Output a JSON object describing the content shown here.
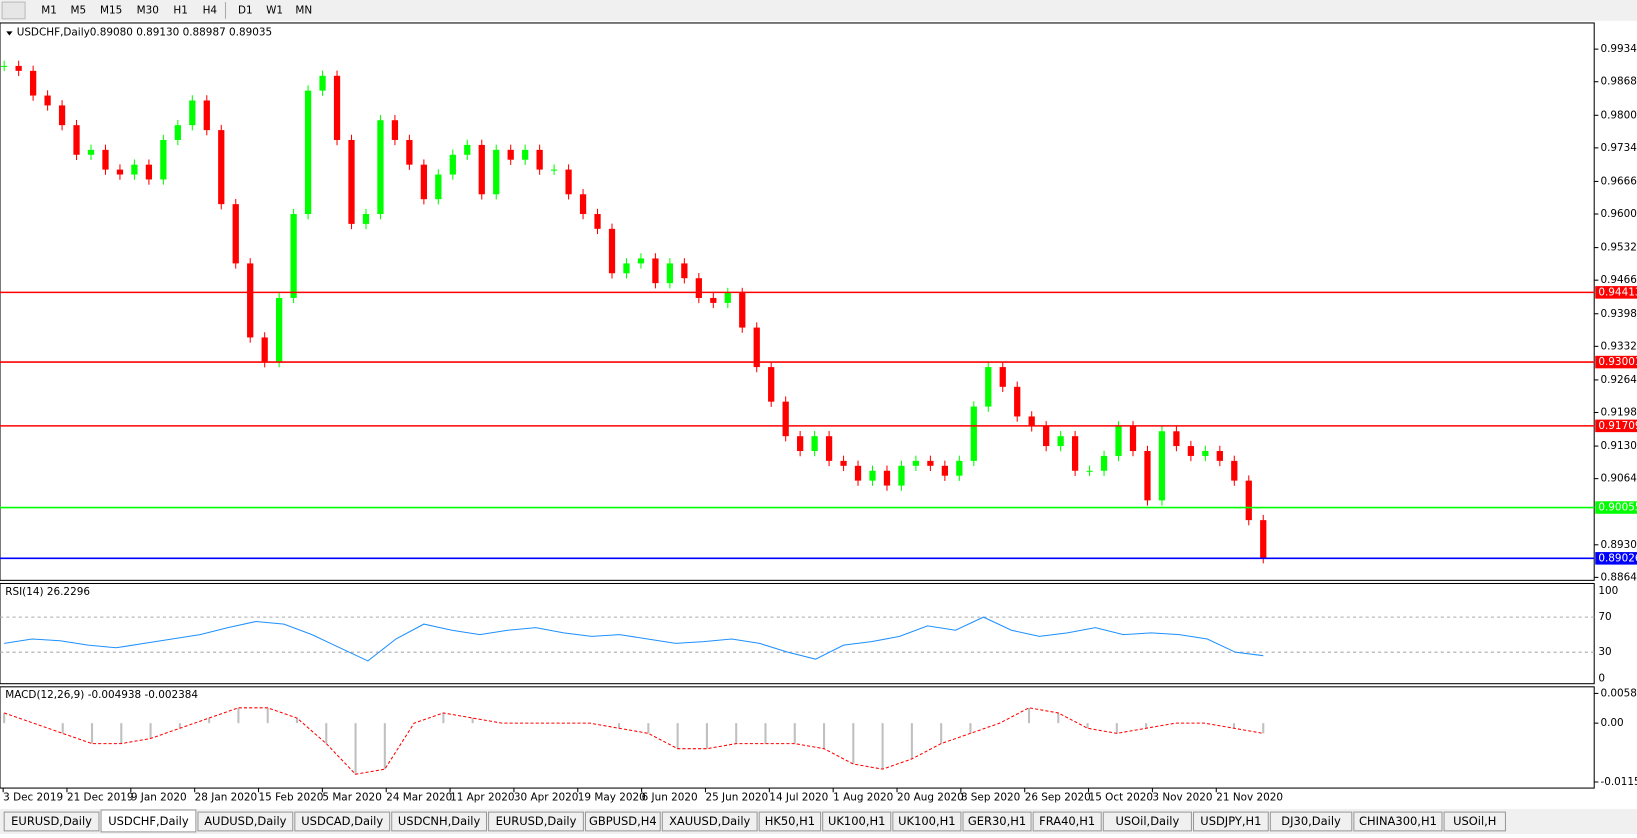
{
  "toolbar": {
    "buttons": [
      "M1",
      "M5",
      "M15",
      "M30",
      "H1",
      "H4",
      "D1",
      "W1",
      "MN"
    ]
  },
  "chart": {
    "symbol": "USDCHF,Daily",
    "ohlc": "0.89080 0.89130 0.88987 0.89035",
    "ylim": [
      0.8858,
      0.9987
    ],
    "yticks": [
      {
        "value": 0.9934,
        "label": "0.99340"
      },
      {
        "value": 0.9868,
        "label": "0.98680"
      },
      {
        "value": 0.98,
        "label": "0.98000"
      },
      {
        "value": 0.9734,
        "label": "0.97340"
      },
      {
        "value": 0.9666,
        "label": "0.96660"
      },
      {
        "value": 0.96,
        "label": "0.96000"
      },
      {
        "value": 0.9532,
        "label": "0.95320"
      },
      {
        "value": 0.9466,
        "label": "0.94660"
      },
      {
        "value": 0.9398,
        "label": "0.93980"
      },
      {
        "value": 0.9332,
        "label": "0.93320"
      },
      {
        "value": 0.9264,
        "label": "0.92640"
      },
      {
        "value": 0.9198,
        "label": "0.91980"
      },
      {
        "value": 0.913,
        "label": "0.91300"
      },
      {
        "value": 0.9064,
        "label": "0.90640"
      },
      {
        "value": 0.893,
        "label": "0.89300"
      },
      {
        "value": 0.8864,
        "label": "0.88640"
      }
    ],
    "levels": [
      {
        "value": 0.94413,
        "color": "#ff0000"
      },
      {
        "value": 0.93001,
        "color": "#ff0000"
      },
      {
        "value": 0.91709,
        "color": "#ff0000"
      },
      {
        "value": 0.90055,
        "color": "#00ff00"
      },
      {
        "value": 0.89026,
        "color": "#0000ff"
      }
    ],
    "closes": [
      0.99,
      0.989,
      0.984,
      0.982,
      0.978,
      0.972,
      0.973,
      0.969,
      0.968,
      0.97,
      0.967,
      0.975,
      0.978,
      0.983,
      0.977,
      0.962,
      0.95,
      0.935,
      0.93,
      0.943,
      0.96,
      0.985,
      0.988,
      0.975,
      0.958,
      0.96,
      0.979,
      0.975,
      0.97,
      0.963,
      0.968,
      0.972,
      0.974,
      0.964,
      0.973,
      0.971,
      0.973,
      0.969,
      0.969,
      0.964,
      0.96,
      0.957,
      0.948,
      0.95,
      0.951,
      0.946,
      0.95,
      0.947,
      0.943,
      0.942,
      0.944,
      0.937,
      0.929,
      0.922,
      0.915,
      0.912,
      0.915,
      0.91,
      0.909,
      0.906,
      0.908,
      0.905,
      0.909,
      0.91,
      0.909,
      0.907,
      0.91,
      0.921,
      0.929,
      0.925,
      0.919,
      0.917,
      0.913,
      0.915,
      0.908,
      0.908,
      0.911,
      0.917,
      0.912,
      0.902,
      0.916,
      0.913,
      0.911,
      0.912,
      0.91,
      0.906,
      0.898,
      0.8903
    ],
    "up_color": "#00ff00",
    "down_color": "#ff0000"
  },
  "rsi": {
    "label": "RSI(14) 26.2296",
    "ylim": [
      0,
      100
    ],
    "yticks": [
      100,
      70,
      30,
      0
    ],
    "color": "#1e90ff",
    "values": [
      40,
      45,
      43,
      38,
      35,
      40,
      45,
      50,
      58,
      65,
      62,
      50,
      35,
      20,
      45,
      62,
      55,
      50,
      55,
      58,
      52,
      48,
      50,
      45,
      40,
      42,
      45,
      40,
      30,
      22,
      38,
      42,
      48,
      60,
      55,
      70,
      55,
      48,
      52,
      58,
      50,
      52,
      50,
      45,
      30,
      26
    ]
  },
  "macd": {
    "label": "MACD(12,26,9) -0.004938 -0.002384",
    "ylim": [
      -0.0125,
      0.0067
    ],
    "yticks": [
      0.005818,
      {
        "value": 0,
        "label": "0.00"
      },
      -0.011514
    ],
    "color": "#ff0000",
    "signal": [
      0.002,
      0.0,
      -0.002,
      -0.004,
      -0.004,
      -0.003,
      -0.001,
      0.001,
      0.003,
      0.003,
      0.001,
      -0.004,
      -0.01,
      -0.009,
      0.0,
      0.002,
      0.001,
      0.0,
      0.0,
      0.0,
      0.0,
      -0.001,
      -0.002,
      -0.005,
      -0.005,
      -0.004,
      -0.004,
      -0.004,
      -0.005,
      -0.008,
      -0.009,
      -0.007,
      -0.004,
      -0.002,
      0.0,
      0.003,
      0.002,
      -0.001,
      -0.002,
      -0.001,
      0.0,
      0.0,
      -0.001,
      -0.002
    ]
  },
  "dates": [
    "3 Dec 2019",
    "21 Dec 2019",
    "9 Jan 2020",
    "28 Jan 2020",
    "15 Feb 2020",
    "5 Mar 2020",
    "24 Mar 2020",
    "11 Apr 2020",
    "30 Apr 2020",
    "19 May 2020",
    "6 Jun 2020",
    "25 Jun 2020",
    "14 Jul 2020",
    "1 Aug 2020",
    "20 Aug 2020",
    "8 Sep 2020",
    "26 Sep 2020",
    "15 Oct 2020",
    "3 Nov 2020",
    "21 Nov 2020"
  ],
  "tabs": [
    "EURUSD,Daily",
    "USDCHF,Daily",
    "AUDUSD,Daily",
    "USDCAD,Daily",
    "USDCNH,Daily",
    "EURUSD,Daily",
    "GBPUSD,H4",
    "XAUUSD,Daily",
    "HK50,H1",
    "UK100,H1",
    "UK100,H1",
    "GER30,H1",
    "FRA40,H1",
    "USOil,Daily",
    "USDJPY,H1",
    "DJ30,Daily",
    "CHINA300,H1",
    "USOil,H"
  ],
  "active_tab": "USDCHF,Daily"
}
